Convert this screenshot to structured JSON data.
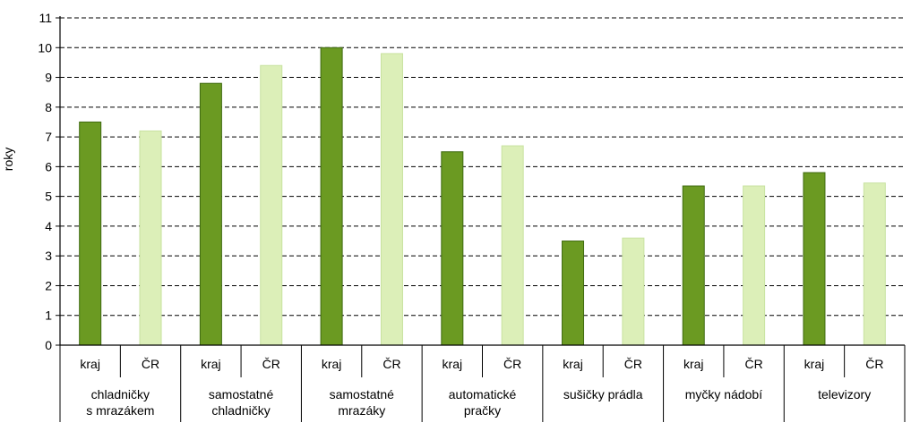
{
  "chart_data": {
    "type": "bar",
    "ylabel": "roky",
    "ylim": [
      0,
      11
    ],
    "yticks": [
      0,
      1,
      2,
      3,
      4,
      5,
      6,
      7,
      8,
      9,
      10,
      11
    ],
    "grid": true,
    "legend": "none",
    "groups": [
      {
        "label": [
          "chladničky",
          "s mrazákem"
        ],
        "categories": [
          "kraj",
          "ČR"
        ],
        "values": [
          7.5,
          7.2
        ]
      },
      {
        "label": [
          "samostatné",
          "chladničky"
        ],
        "categories": [
          "kraj",
          "ČR"
        ],
        "values": [
          8.8,
          9.4
        ]
      },
      {
        "label": [
          "samostatné",
          "mrazáky"
        ],
        "categories": [
          "kraj",
          "ČR"
        ],
        "values": [
          10.0,
          9.8
        ]
      },
      {
        "label": [
          "automatické",
          "pračky"
        ],
        "categories": [
          "kraj",
          "ČR"
        ],
        "values": [
          6.5,
          6.7
        ]
      },
      {
        "label": [
          "sušičky prádla"
        ],
        "categories": [
          "kraj",
          "ČR"
        ],
        "values": [
          3.5,
          3.6
        ]
      },
      {
        "label": [
          "myčky nádobí"
        ],
        "categories": [
          "kraj",
          "ČR"
        ],
        "values": [
          5.35,
          5.35
        ]
      },
      {
        "label": [
          "televizory"
        ],
        "categories": [
          "kraj",
          "ČR"
        ],
        "values": [
          5.8,
          5.45
        ]
      }
    ],
    "colors": {
      "kraj_fill": "#6b9a22",
      "kraj_stroke": "#3f6a10",
      "cr_fill": "#dcefb8",
      "cr_stroke": "#c8e2a0",
      "grid": "#000000",
      "axis": "#000000"
    }
  }
}
